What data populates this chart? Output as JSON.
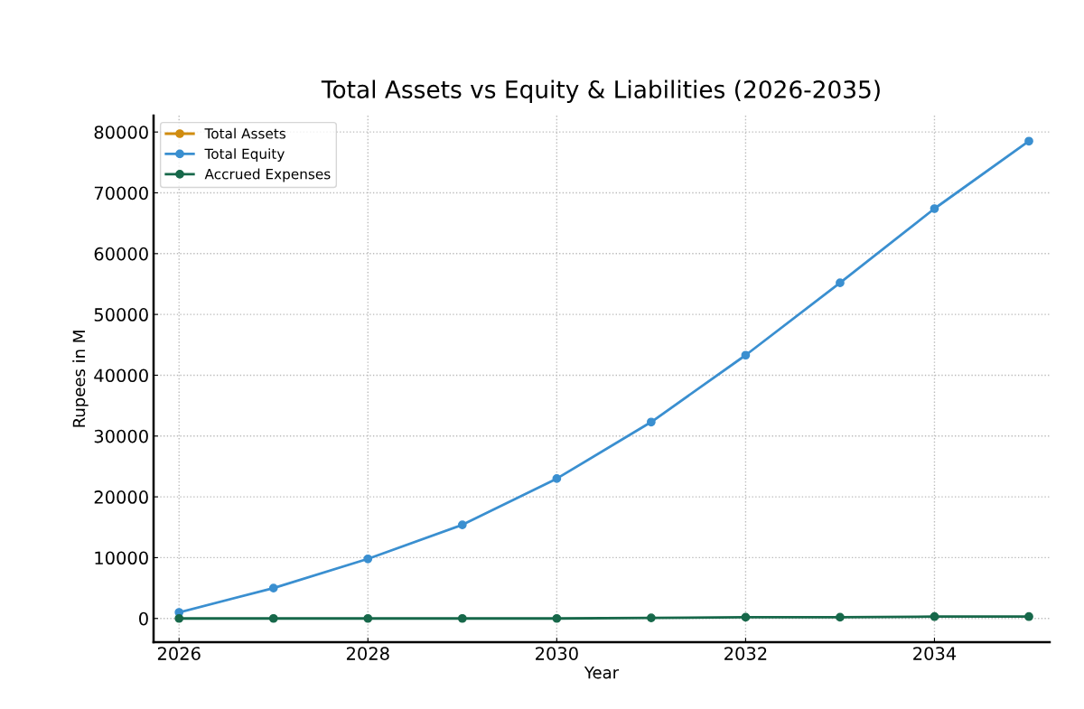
{
  "chart_data": {
    "type": "line",
    "title": "Total Assets vs Equity & Liabilities (2026-2035)",
    "xlabel": "Year",
    "ylabel": "Rupees in M",
    "x": [
      2026,
      2027,
      2028,
      2029,
      2030,
      2031,
      2032,
      2033,
      2034,
      2035
    ],
    "series": [
      {
        "name": "Total Assets",
        "color": "#d08c10",
        "values": [
          null,
          null,
          null,
          null,
          null,
          null,
          null,
          null,
          null,
          null
        ]
      },
      {
        "name": "Total Equity",
        "color": "#3a8fd0",
        "values": [
          1000,
          5000,
          9800,
          15400,
          23000,
          32300,
          43300,
          55200,
          67400,
          78500
        ]
      },
      {
        "name": "Accrued Expenses",
        "color": "#17684a",
        "values": [
          0,
          0,
          0,
          0,
          0,
          100,
          200,
          200,
          300,
          300
        ]
      }
    ],
    "xlim": [
      2025.73,
      2035.22
    ],
    "xticks": [
      2026,
      2028,
      2030,
      2032,
      2034
    ],
    "ylim": [
      -3900,
      82700
    ],
    "yticks": [
      0,
      10000,
      20000,
      30000,
      40000,
      50000,
      60000,
      70000,
      80000
    ],
    "grid": true,
    "legend": "top left",
    "marker": "circle",
    "line_style": "solid"
  }
}
